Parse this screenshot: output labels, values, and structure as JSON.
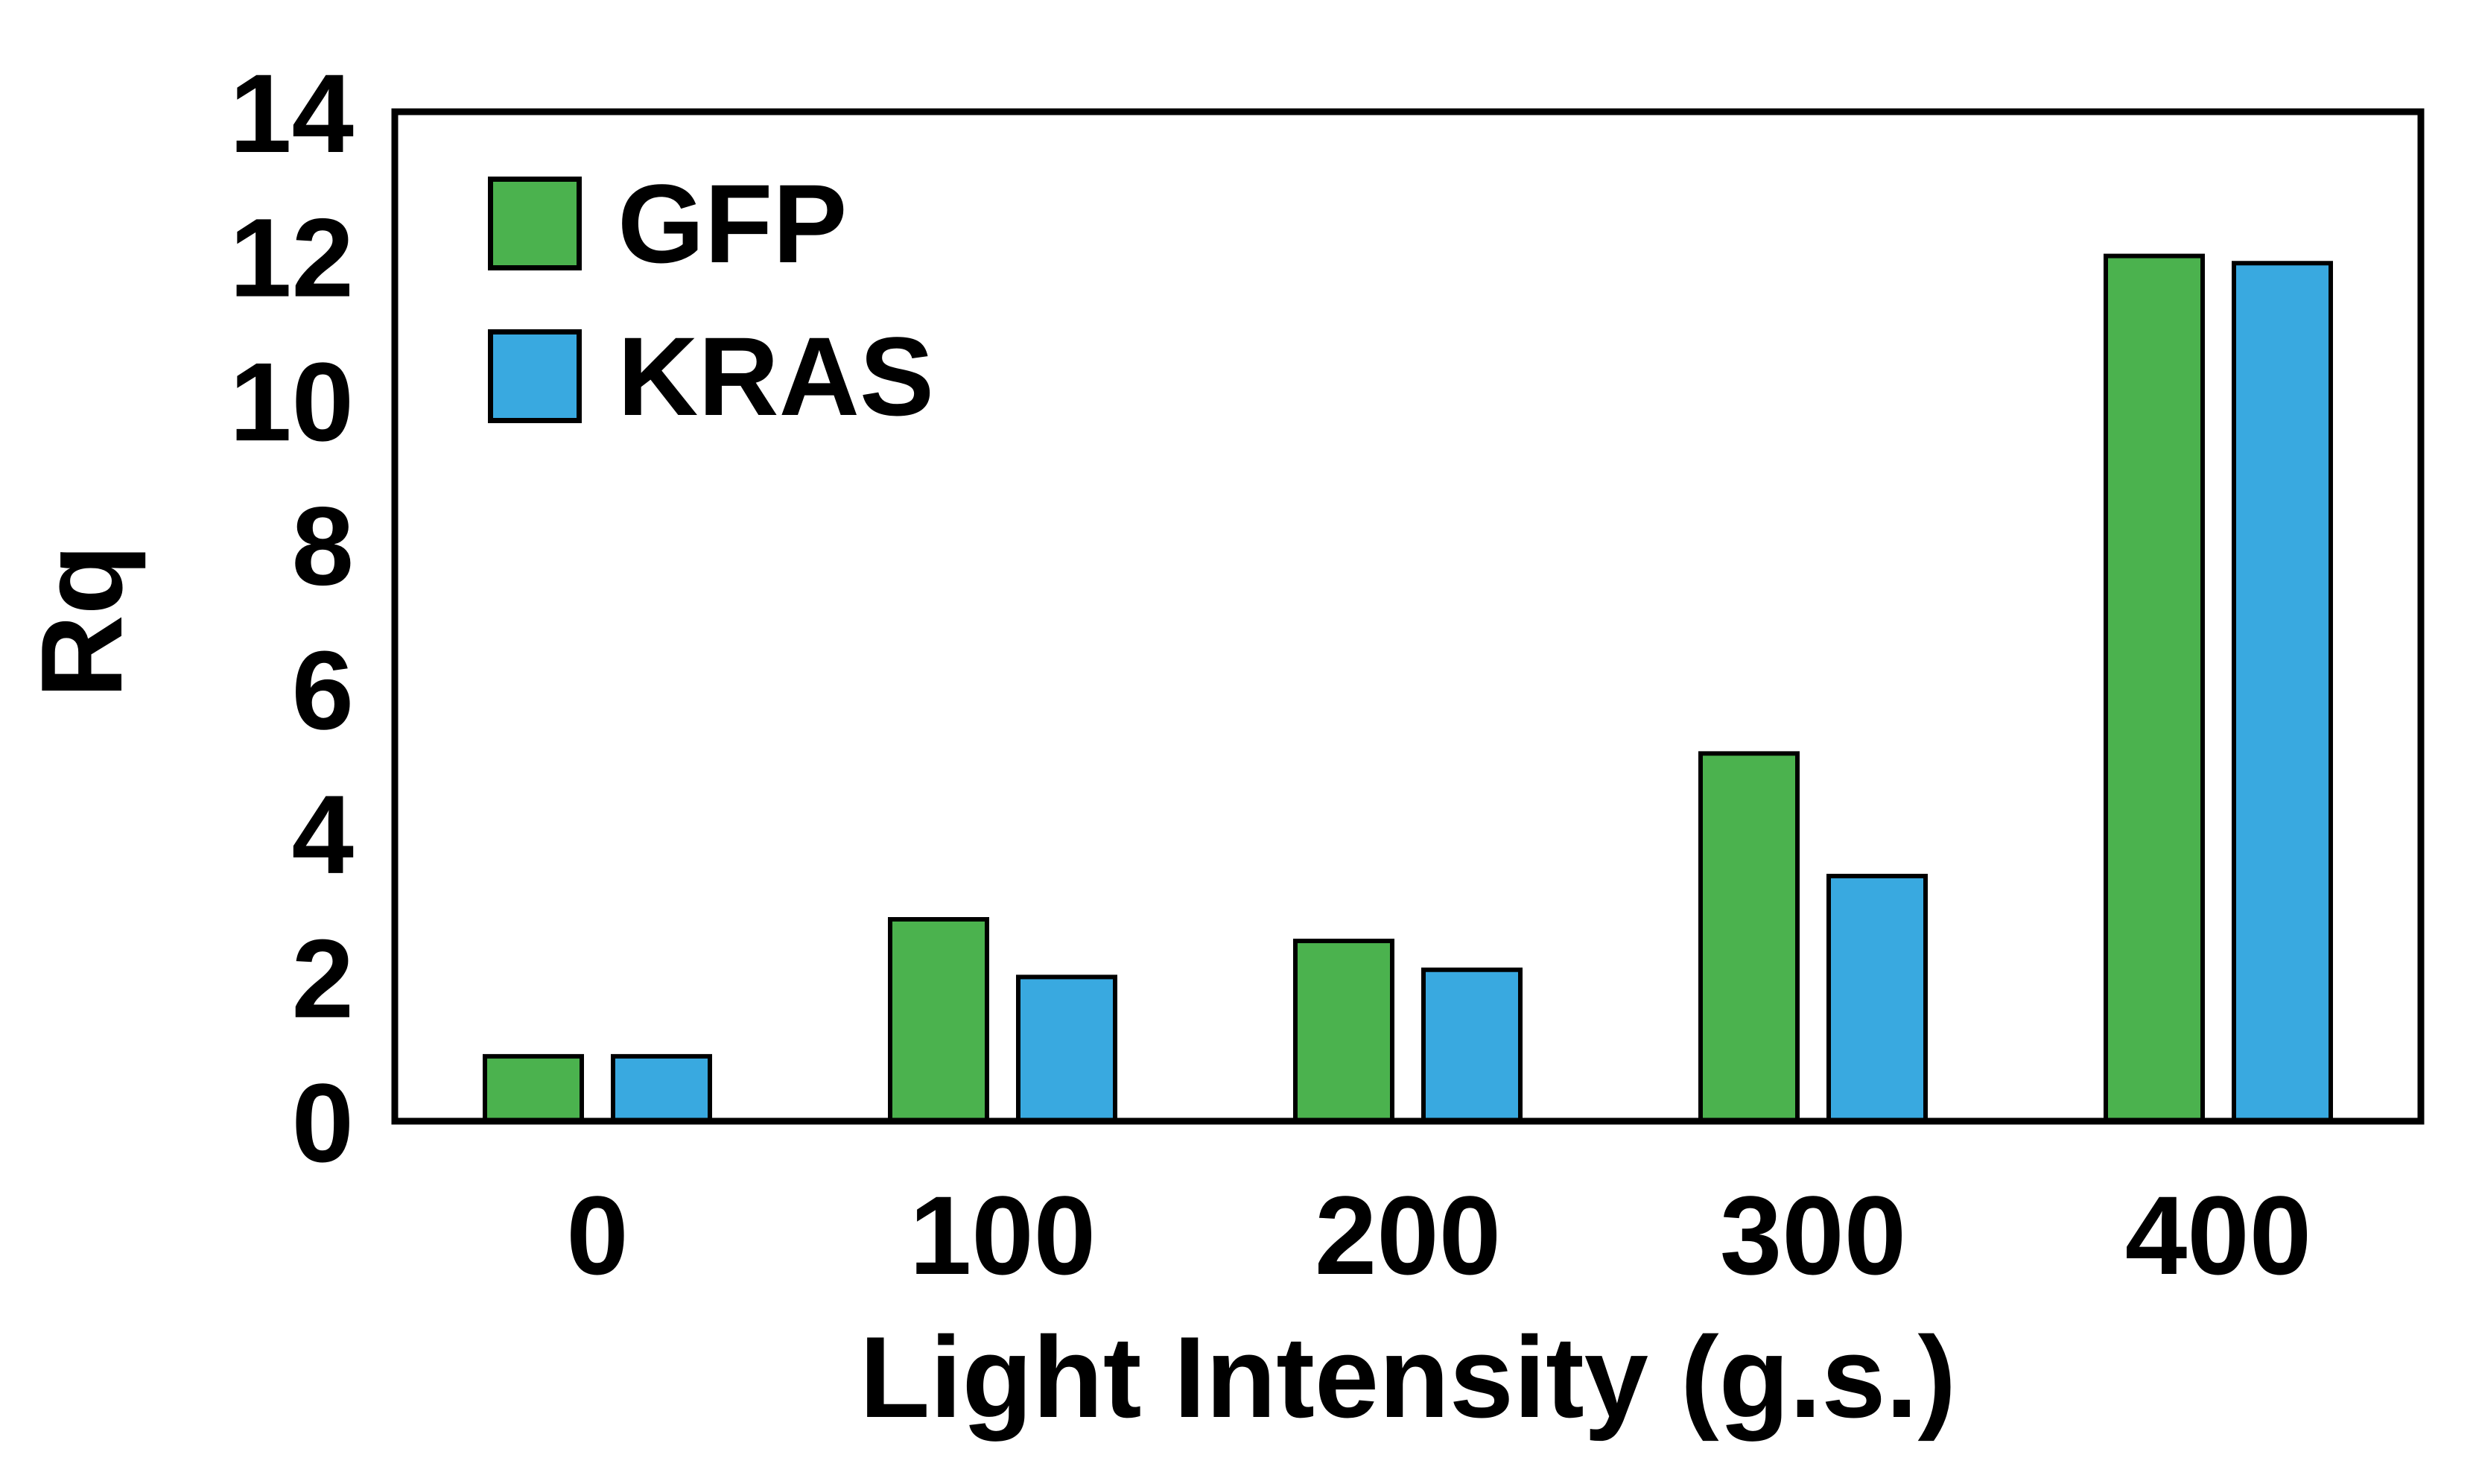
{
  "chart_data": {
    "type": "bar",
    "title": "",
    "xlabel": "Light Intensity (g.s.)",
    "ylabel": "Rq",
    "categories": [
      "0",
      "100",
      "200",
      "300",
      "400"
    ],
    "series": [
      {
        "name": "GFP",
        "color": "#4bb24e",
        "values": [
          0.9,
          2.8,
          2.5,
          5.1,
          12.0
        ]
      },
      {
        "name": "KRAS",
        "color": "#39a9e0",
        "values": [
          0.9,
          2.0,
          2.1,
          3.4,
          11.9
        ]
      }
    ],
    "ylim": [
      0,
      14
    ],
    "yticks": [
      0,
      2,
      4,
      6,
      8,
      10,
      12,
      14
    ],
    "grid": false,
    "legend_position": "top-left",
    "bar_edge_color": "#000000",
    "axis_color": "#000000"
  }
}
